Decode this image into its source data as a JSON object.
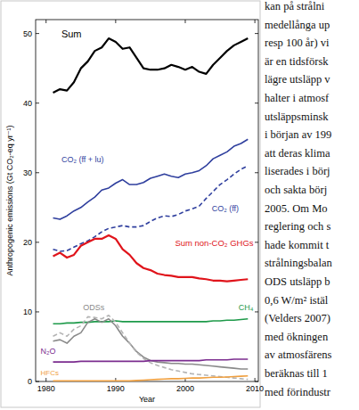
{
  "chart_data": {
    "type": "line",
    "x_label": "Year",
    "y_label": "Anthropogenic emissions (Gt CO₂-eq yr⁻¹)",
    "x": [
      1981,
      1982,
      1983,
      1984,
      1985,
      1986,
      1987,
      1988,
      1989,
      1990,
      1991,
      1992,
      1993,
      1994,
      1995,
      1996,
      1997,
      1998,
      1999,
      2000,
      2001,
      2002,
      2003,
      2004,
      2005,
      2006,
      2007,
      2008,
      2009
    ],
    "xlim": [
      1978.5,
      2010.5
    ],
    "xticks": [
      1980,
      1990,
      2000,
      2010
    ],
    "ylim": [
      0,
      52
    ],
    "yticks": [
      0,
      10,
      20,
      30,
      40,
      50
    ],
    "grid": false,
    "series": [
      {
        "name": "Sum",
        "color": "#000000",
        "line_style": "solid",
        "values": [
          41.5,
          42,
          41.8,
          43,
          45,
          46,
          47.5,
          48,
          49.3,
          48.8,
          47.8,
          48,
          46.5,
          45,
          44.8,
          44.8,
          45,
          45.5,
          45.2,
          44.8,
          45.2,
          44.5,
          44.2,
          45.5,
          46.5,
          47.5,
          48.3,
          48.8,
          49.3
        ]
      },
      {
        "name": "CO₂ (ff + lu)",
        "color": "#2f3f9e",
        "line_style": "solid",
        "values": [
          23.5,
          23.3,
          23.8,
          24.5,
          25,
          25.8,
          26.5,
          27.5,
          27.8,
          28.5,
          29,
          28.3,
          28.3,
          28.6,
          29.2,
          29.5,
          29.8,
          29.5,
          29.3,
          29.8,
          30,
          30.3,
          31,
          32,
          32.5,
          33,
          33.8,
          34.2,
          34.8
        ]
      },
      {
        "name": "CO₂ (ff)",
        "color": "#2f3f9e",
        "line_style": "dashed",
        "values": [
          19,
          18.7,
          18.8,
          19.3,
          19.8,
          20.2,
          20.8,
          21.5,
          22,
          22.2,
          22.4,
          22.2,
          22.2,
          22.4,
          23,
          23.5,
          23.8,
          23.7,
          24,
          24.5,
          24.8,
          25.2,
          26.3,
          27.3,
          28.3,
          29,
          29.8,
          30.5,
          31
        ]
      },
      {
        "name": "Sum non-CO₂ GHGs",
        "color": "#e0141b",
        "line_style": "solid",
        "values": [
          18,
          18.5,
          17.8,
          18.2,
          19.5,
          20,
          20.5,
          20.5,
          21,
          20.5,
          19,
          18.2,
          17,
          16.3,
          16,
          15.5,
          15.3,
          15.2,
          15,
          15,
          15,
          14.8,
          14.7,
          14.5,
          14.5,
          14.4,
          14.5,
          14.6,
          14.7
        ]
      },
      {
        "name": "CH₄",
        "color": "#1e9a4a",
        "line_style": "solid",
        "values": [
          8.3,
          8.3,
          8.4,
          8.4,
          8.5,
          8.5,
          8.6,
          8.6,
          8.6,
          8.7,
          8.6,
          8.6,
          8.6,
          8.6,
          8.6,
          8.6,
          8.6,
          8.6,
          8.6,
          8.6,
          8.6,
          8.6,
          8.6,
          8.7,
          8.7,
          8.8,
          8.8,
          8.9,
          9.0
        ]
      },
      {
        "name": "ODSs",
        "color": "#8a8a8a",
        "line_style": "solid",
        "values": [
          5.8,
          6,
          5.5,
          6.5,
          7,
          8.5,
          9,
          8.5,
          9,
          8,
          6.5,
          5.5,
          4.3,
          3.5,
          3,
          2.8,
          2.7,
          2.6,
          2.6,
          2.5,
          2.5,
          2.4,
          2.3,
          2.2,
          2.1,
          2,
          1.9,
          1.8,
          1.8
        ]
      },
      {
        "name": null,
        "color": "#b4b4b4",
        "line_style": "dashed",
        "values": [
          6.5,
          7,
          6.5,
          7.5,
          8,
          9.3,
          9.2,
          9,
          9.5,
          8.5,
          7,
          5.5,
          4.2,
          3.3,
          2.7,
          2.3,
          2,
          1.7,
          1.5,
          1.3,
          1.1,
          1,
          0.9,
          0.8,
          0.7,
          0.6,
          0.5,
          0.4,
          0.3
        ]
      },
      {
        "name": "N₂O",
        "color": "#7b2c8f",
        "line_style": "solid",
        "values": [
          2.8,
          2.8,
          2.8,
          2.8,
          2.9,
          2.9,
          2.9,
          2.9,
          2.9,
          2.9,
          2.9,
          2.9,
          2.9,
          2.9,
          3,
          3,
          3,
          3,
          3,
          3,
          3,
          3,
          3.1,
          3.1,
          3.1,
          3.1,
          3.2,
          3.2,
          3.2
        ]
      },
      {
        "name": "HFCs",
        "color": "#f0a040",
        "line_style": "solid",
        "values": [
          0.1,
          0.1,
          0.1,
          0.1,
          0.1,
          0.1,
          0.1,
          0.1,
          0.1,
          0.1,
          0.1,
          0.1,
          0.15,
          0.2,
          0.25,
          0.3,
          0.35,
          0.4,
          0.4,
          0.45,
          0.5,
          0.5,
          0.55,
          0.6,
          0.6,
          0.65,
          0.7,
          0.75,
          0.8
        ]
      }
    ]
  },
  "text_column": {
    "lines": [
      "kan på strålni",
      "medellånga up",
      "resp 100 år) vi",
      "är en tidsförsk",
      "lägre utsläpp v",
      "halter i atmosf",
      "utsläppsminsk",
      "i början av 199",
      "att deras klima",
      "liserades i börj",
      "och sakta börj",
      "2005. Om Mo",
      "reglering och s",
      "hade kommit t",
      "strålningsbalan",
      "ODS utsläpp b",
      "0,6 W/m² istäl",
      "(Velders 2007)",
      "med ökningen",
      "av atmosfärens",
      "beräknas till 1",
      "med förindustr"
    ]
  }
}
